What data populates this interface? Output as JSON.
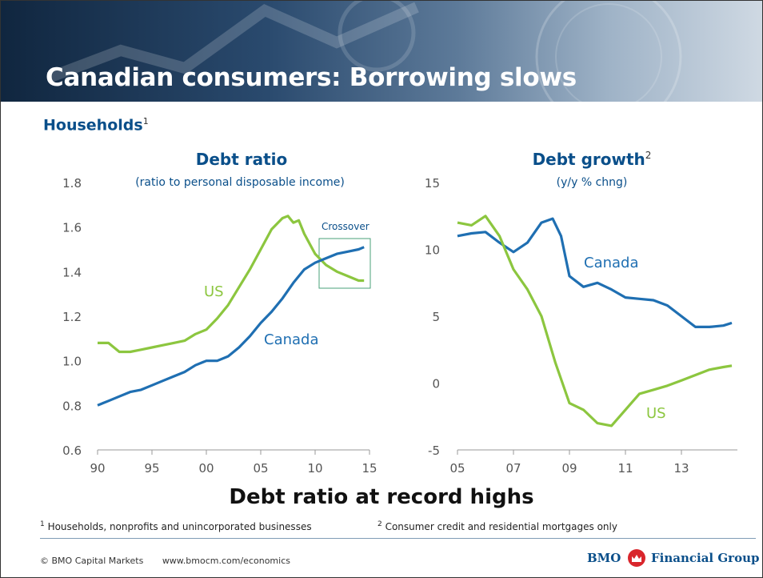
{
  "slide": {
    "title": "Canadian consumers: Borrowing slows",
    "subtitle": "Households",
    "subtitle_note_mark": "1",
    "headline": "Debt ratio at record highs",
    "footnotes": [
      {
        "mark": "1",
        "text": "Households, nonprofits and unincorporated businesses"
      },
      {
        "mark": "2",
        "text": "Consumer credit and residential mortgages only"
      }
    ],
    "footer": {
      "copyright": "© BMO Capital Markets",
      "url": "www.bmocm.com/economics"
    },
    "logo": {
      "left": "BMO",
      "right": "Financial Group",
      "icon": "bmo-roundel-icon"
    }
  },
  "colors": {
    "canada": "#1f6fb2",
    "us": "#8cc63f",
    "title": "#0a4f8a",
    "axis": "#999999"
  },
  "chart_data": [
    {
      "type": "line",
      "title": "Debt ratio",
      "subtitle": "(ratio to personal disposable income)",
      "ylim": [
        0.6,
        1.8
      ],
      "yticks": [
        "0.6",
        "0.8",
        "1.0",
        "1.2",
        "1.4",
        "1.6",
        "1.8"
      ],
      "xlim": [
        1990,
        2015
      ],
      "xticks": [
        "90",
        "95",
        "00",
        "05",
        "10",
        "15"
      ],
      "annotation": "Crossover",
      "series": [
        {
          "name": "US",
          "x": [
            1990,
            1991,
            1992,
            1993,
            1994,
            1995,
            1996,
            1997,
            1998,
            1999,
            2000,
            2001,
            2002,
            2003,
            2004,
            2005,
            2006,
            2007,
            2007.5,
            2008,
            2008.5,
            2009,
            2010,
            2011,
            2012,
            2013,
            2014,
            2014.5
          ],
          "values": [
            1.08,
            1.08,
            1.04,
            1.04,
            1.05,
            1.06,
            1.07,
            1.08,
            1.09,
            1.12,
            1.14,
            1.19,
            1.25,
            1.33,
            1.41,
            1.5,
            1.59,
            1.64,
            1.65,
            1.62,
            1.63,
            1.57,
            1.48,
            1.43,
            1.4,
            1.38,
            1.36,
            1.36
          ]
        },
        {
          "name": "Canada",
          "x": [
            1990,
            1991,
            1992,
            1993,
            1994,
            1995,
            1996,
            1997,
            1998,
            1999,
            2000,
            2001,
            2002,
            2003,
            2004,
            2005,
            2006,
            2007,
            2008,
            2009,
            2010,
            2011,
            2012,
            2013,
            2014,
            2014.5
          ],
          "values": [
            0.8,
            0.82,
            0.84,
            0.86,
            0.87,
            0.89,
            0.91,
            0.93,
            0.95,
            0.98,
            1.0,
            1.0,
            1.02,
            1.06,
            1.11,
            1.17,
            1.22,
            1.28,
            1.35,
            1.41,
            1.44,
            1.46,
            1.48,
            1.49,
            1.5,
            1.51
          ]
        }
      ]
    },
    {
      "type": "line",
      "title": "Debt growth",
      "title_note_mark": "2",
      "subtitle": "(y/y % chng)",
      "ylim": [
        -5,
        15
      ],
      "yticks": [
        "-5",
        "0",
        "5",
        "10",
        "15"
      ],
      "xlim": [
        2005,
        2015
      ],
      "xticks": [
        "05",
        "07",
        "09",
        "11",
        "13"
      ],
      "series": [
        {
          "name": "Canada",
          "x": [
            2005,
            2005.5,
            2006,
            2006.5,
            2007,
            2007.5,
            2008,
            2008.4,
            2008.7,
            2009,
            2009.5,
            2010,
            2010.5,
            2011,
            2011.5,
            2012,
            2012.5,
            2013,
            2013.5,
            2014,
            2014.5,
            2014.8
          ],
          "values": [
            11.0,
            11.2,
            11.3,
            10.5,
            9.8,
            10.5,
            12.0,
            12.3,
            11.0,
            8.0,
            7.2,
            7.5,
            7.0,
            6.4,
            6.3,
            6.2,
            5.8,
            5.0,
            4.2,
            4.2,
            4.3,
            4.5
          ]
        },
        {
          "name": "US",
          "x": [
            2005,
            2005.5,
            2006,
            2006.5,
            2007,
            2007.5,
            2008,
            2008.5,
            2009,
            2009.5,
            2010,
            2010.5,
            2011,
            2011.5,
            2012,
            2012.5,
            2013,
            2013.5,
            2014,
            2014.5,
            2014.8
          ],
          "values": [
            12.0,
            11.8,
            12.5,
            11.0,
            8.5,
            7.0,
            5.0,
            1.5,
            -1.5,
            -2.0,
            -3.0,
            -3.2,
            -2.0,
            -0.8,
            -0.5,
            -0.2,
            0.2,
            0.6,
            1.0,
            1.2,
            1.3
          ]
        }
      ]
    }
  ]
}
